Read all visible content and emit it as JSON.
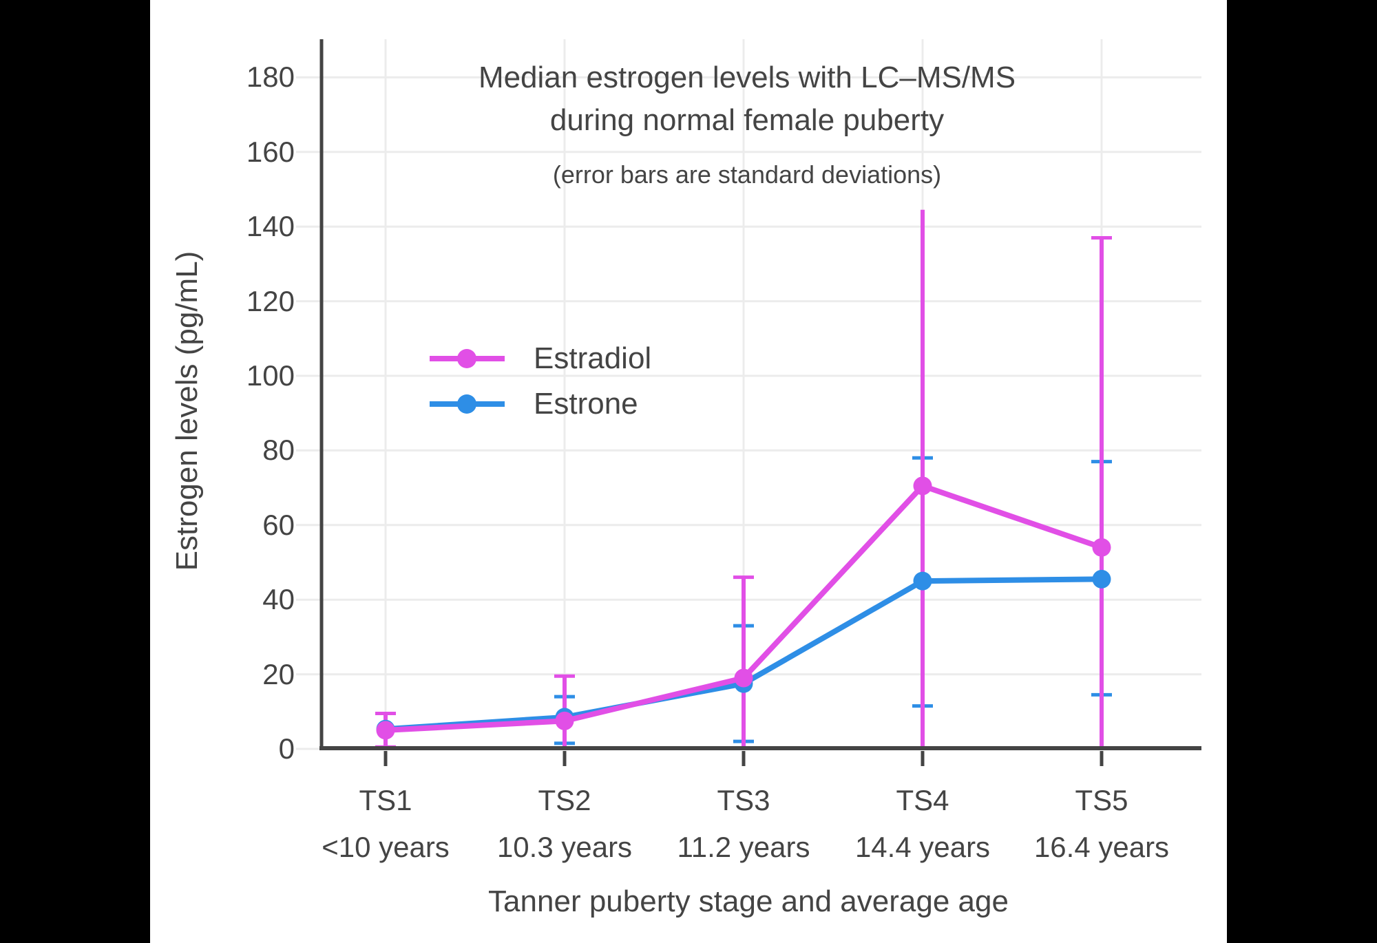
{
  "header": {
    "title_line1": "Median estrogen levels with LC–MS/MS",
    "title_line2": "during normal female puberty",
    "subtitle": "(error bars are standard deviations)"
  },
  "axes": {
    "y_title": "Estrogen levels (pg/mL)",
    "x_title": "Tanner puberty stage and average age"
  },
  "colors": {
    "estradiol": "#E14FE6",
    "estrone": "#2E8EE6",
    "text": "#444444",
    "grid": "#ECECEC",
    "axis": "#444444",
    "background": "#FFFFFF",
    "letterbox": "#000000"
  },
  "chart_data": {
    "type": "line",
    "title": "Median estrogen levels with LC–MS/MS during normal female puberty",
    "subtitle": "(error bars are standard deviations)",
    "xlabel": "Tanner puberty stage and average age",
    "ylabel": "Estrogen levels (pg/mL)",
    "categories": [
      "TS1",
      "TS2",
      "TS3",
      "TS4",
      "TS5"
    ],
    "category_sublabels": [
      "<10 years",
      "10.3 years",
      "11.2 years",
      "14.4 years",
      "16.4 years"
    ],
    "y_ticks": [
      0,
      20,
      40,
      60,
      80,
      100,
      120,
      140,
      160,
      180
    ],
    "ylim": [
      0,
      190
    ],
    "grid": true,
    "legend_position": "inside-upper-left",
    "error_bar_meaning": "standard deviations",
    "series": [
      {
        "name": "Estradiol",
        "color": "#E14FE6",
        "values": [
          5,
          7.5,
          19,
          70.5,
          54
        ],
        "error_top": [
          9.5,
          19.5,
          46,
          144.5,
          137
        ],
        "error_bottom": [
          0.5,
          0,
          0,
          0,
          0
        ],
        "cap_top": [
          true,
          true,
          true,
          false,
          true
        ],
        "cap_bottom": [
          true,
          false,
          false,
          false,
          false
        ]
      },
      {
        "name": "Estrone",
        "color": "#2E8EE6",
        "values": [
          5.3,
          8.5,
          17.5,
          45,
          45.5
        ],
        "error_top": [
          null,
          14,
          33,
          78,
          77
        ],
        "error_bottom": [
          null,
          1.5,
          2,
          11.5,
          14.5
        ],
        "cap_top": [
          false,
          true,
          true,
          true,
          true
        ],
        "cap_bottom": [
          false,
          true,
          true,
          true,
          true
        ]
      }
    ]
  }
}
